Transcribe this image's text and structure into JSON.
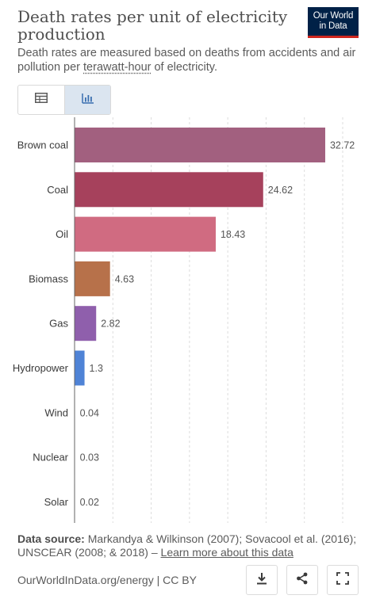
{
  "header": {
    "title": "Death rates per unit of electricity production",
    "logo_line1": "Our World",
    "logo_line2": "in Data",
    "subtitle_before": "Death rates are measured based on deaths from accidents and air pollution per ",
    "subtitle_link": "terawatt-hour",
    "subtitle_after": " of electricity."
  },
  "tabs": [
    {
      "icon": "table-icon",
      "active": false
    },
    {
      "icon": "chart-icon",
      "active": true
    }
  ],
  "chart_data": {
    "type": "bar",
    "orientation": "horizontal",
    "title": "Death rates per unit of electricity production",
    "xlabel": "",
    "ylabel": "",
    "xlim": [
      0,
      35
    ],
    "grid": true,
    "legend": "none",
    "categories": [
      "Brown coal",
      "Coal",
      "Oil",
      "Biomass",
      "Gas",
      "Hydropower",
      "Wind",
      "Nuclear",
      "Solar"
    ],
    "values": [
      32.72,
      24.62,
      18.43,
      4.63,
      2.82,
      1.3,
      0.04,
      0.03,
      0.02
    ],
    "value_labels": [
      "32.72",
      "24.62",
      "18.43",
      "4.63",
      "2.82",
      "1.3",
      "0.04",
      "0.03",
      "0.02"
    ],
    "colors": [
      "#a2607f",
      "#a6415c",
      "#d06b81",
      "#b7714a",
      "#8f5fac",
      "#4f83d6",
      "#e6e6e6",
      "#e6e6e6",
      "#e6e6e6"
    ]
  },
  "footer": {
    "source_label": "Data source:",
    "source_text": " Markandya & Wilkinson (2007); Sovacool et al. (2016); UNSCEAR (2008; & 2018) – ",
    "source_link": "Learn more about this data",
    "credit": "OurWorldInData.org/energy | CC BY",
    "buttons": [
      "download-icon",
      "share-icon",
      "fullscreen-icon"
    ]
  }
}
